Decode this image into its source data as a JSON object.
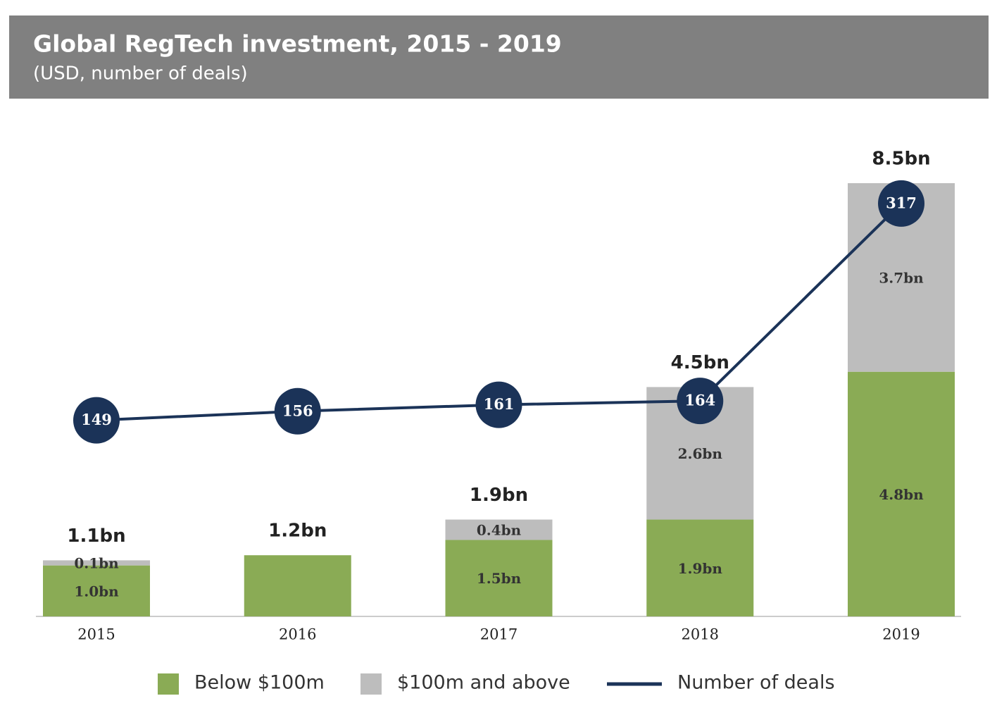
{
  "chart_data": {
    "type": "bar+line",
    "title": "Global RegTech investment, 2015 - 2019",
    "subtitle": "(USD, number of deals)",
    "categories": [
      "2015",
      "2016",
      "2017",
      "2018",
      "2019"
    ],
    "series": [
      {
        "name": "Below $100m",
        "color": "#8aab55",
        "values": [
          1.0,
          1.2,
          1.5,
          1.9,
          4.8
        ],
        "value_labels": [
          "1.0bn",
          null,
          "1.5bn",
          "1.9bn",
          "4.8bn"
        ]
      },
      {
        "name": "$100m and above",
        "color": "#bdbdbd",
        "values": [
          0.1,
          0,
          0.4,
          2.6,
          3.7
        ],
        "value_labels": [
          "0.1bn",
          null,
          "0.4bn",
          "2.6bn",
          "3.7bn"
        ]
      },
      {
        "name": "Number of deals",
        "color": "#1b3358",
        "axis": "y2",
        "values": [
          149,
          156,
          161,
          164,
          317
        ]
      }
    ],
    "total_values": [
      1.1,
      1.2,
      1.9,
      4.5,
      8.5
    ],
    "total_labels": [
      "1.1bn",
      "1.2bn",
      "1.9bn",
      "4.5bn",
      "8.5bn"
    ],
    "ylim": [
      0,
      10
    ],
    "y2lim": [
      -3,
      392
    ],
    "legend": "bottom"
  }
}
